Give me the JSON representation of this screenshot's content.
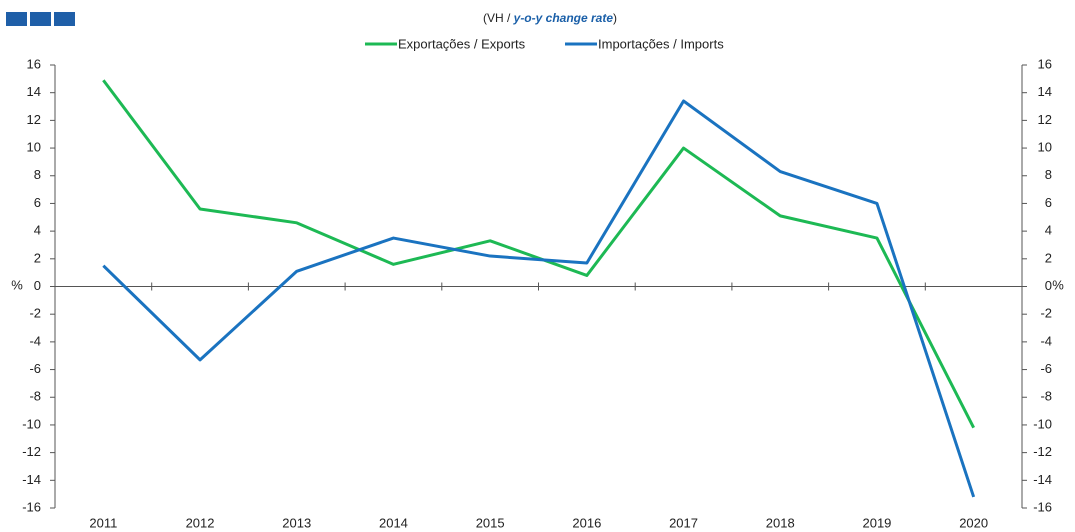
{
  "chart_data": {
    "type": "line",
    "subtitle": [
      "(VH / ",
      "y-o-y change rate",
      ")"
    ],
    "ylabel": "%",
    "y2label": "%",
    "categories": [
      "2011",
      "2012",
      "2013",
      "2014",
      "2015",
      "2016",
      "2017",
      "2018",
      "2019",
      "2020"
    ],
    "series": [
      {
        "name": "Exportações / Exports",
        "color": "#1db954",
        "values": [
          14.9,
          5.6,
          4.6,
          1.6,
          3.3,
          0.8,
          10.0,
          5.1,
          3.5,
          -10.2
        ]
      },
      {
        "name": "Importações / Imports",
        "color": "#1a73c0",
        "values": [
          1.5,
          -5.3,
          1.1,
          3.5,
          2.2,
          1.7,
          13.4,
          8.3,
          6.0,
          -15.2
        ]
      }
    ],
    "ylim": [
      -16,
      16
    ],
    "yticks": [
      -16,
      -14,
      -12,
      -10,
      -8,
      -6,
      -4,
      -2,
      0,
      2,
      4,
      6,
      8,
      10,
      12,
      14,
      16
    ],
    "y2lim": [
      -16,
      16
    ],
    "y2ticks": [
      -16,
      -14,
      -12,
      -10,
      -8,
      -6,
      -4,
      -2,
      0,
      2,
      4,
      6,
      8,
      10,
      12,
      14,
      16
    ],
    "legend": "top"
  }
}
